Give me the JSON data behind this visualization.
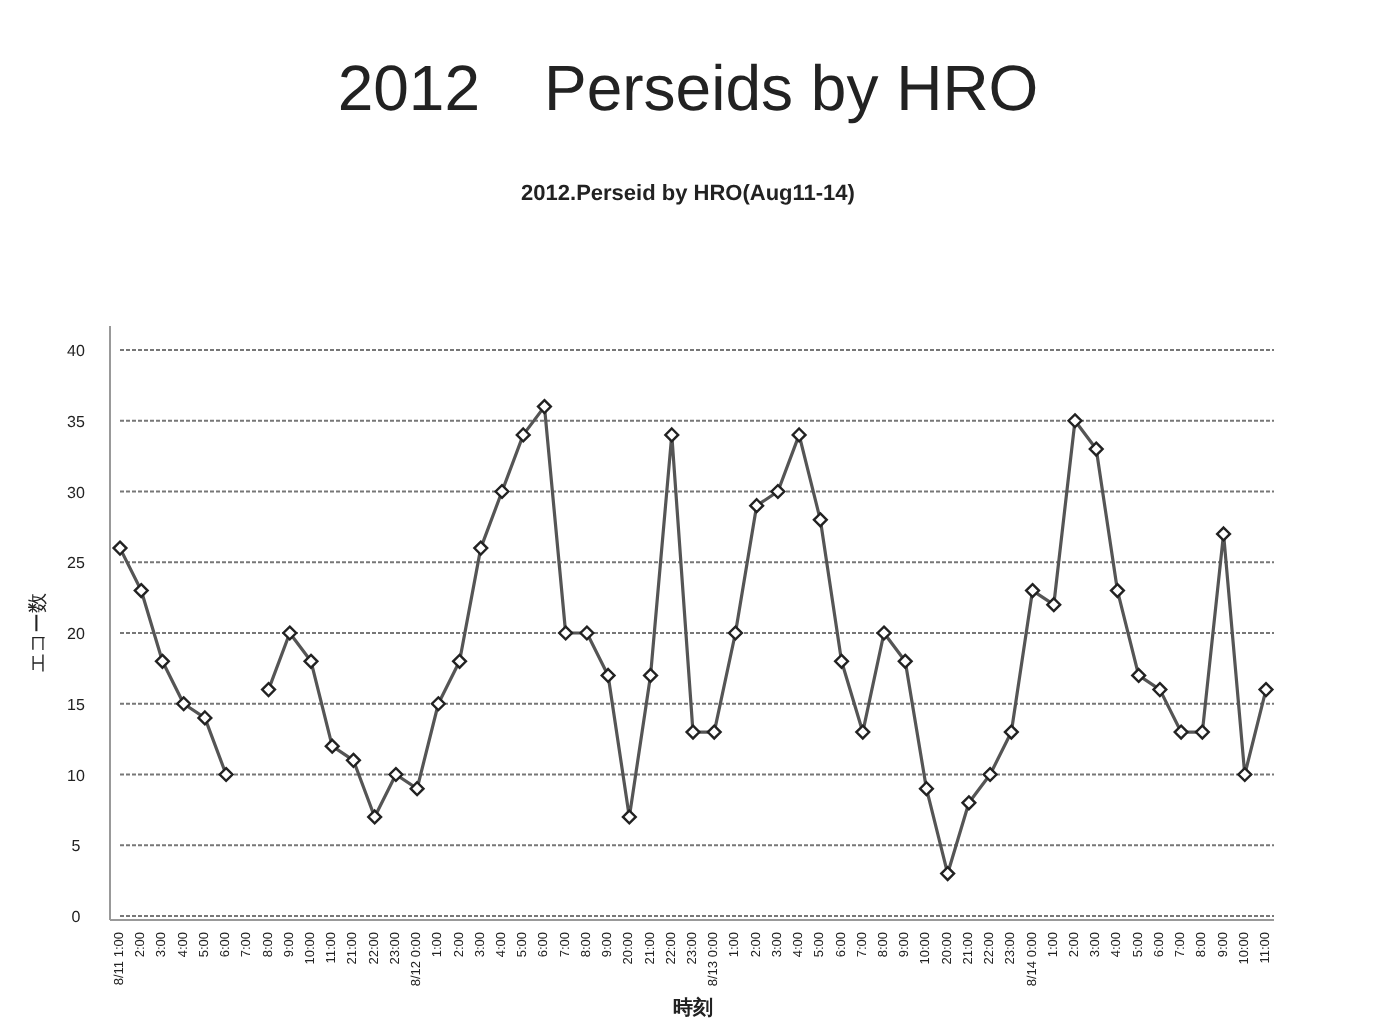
{
  "chart_data": {
    "type": "line",
    "title": "2012　Perseids by HRO",
    "subtitle": "2012.Perseid by HRO(Aug11-14)",
    "xlabel": "時刻",
    "ylabel": "エコー数",
    "categories": [
      "8/11 1:00",
      "2:00",
      "3:00",
      "4:00",
      "5:00",
      "6:00",
      "7:00",
      "8:00",
      "9:00",
      "10:00",
      "11:00",
      "21:00",
      "22:00",
      "23:00",
      "8/12 0:00",
      "1:00",
      "2:00",
      "3:00",
      "4:00",
      "5:00",
      "6:00",
      "7:00",
      "8:00",
      "9:00",
      "20:00",
      "21:00",
      "22:00",
      "23:00",
      "8/13 0:00",
      "1:00",
      "2:00",
      "3:00",
      "4:00",
      "5:00",
      "6:00",
      "7:00",
      "8:00",
      "9:00",
      "10:00",
      "20:00",
      "21:00",
      "22:00",
      "23:00",
      "8/14 0:00",
      "1:00",
      "2:00",
      "3:00",
      "4:00",
      "5:00",
      "6:00",
      "7:00",
      "8:00",
      "9:00",
      "10:00",
      "11:00"
    ],
    "series": [
      {
        "color": "#555555",
        "values": [
          26,
          23,
          18,
          15,
          14,
          10,
          null,
          16,
          20,
          18,
          12,
          11,
          7,
          10,
          9,
          15,
          18,
          26,
          30,
          34,
          36,
          20,
          20,
          17,
          7,
          17,
          34,
          13,
          13,
          20,
          29,
          30,
          34,
          28,
          18,
          13,
          20,
          18,
          9,
          3,
          8,
          10,
          13,
          23,
          22,
          35,
          33,
          23,
          17,
          16,
          13,
          13,
          27,
          10,
          16
        ]
      }
    ],
    "ylim": [
      0,
      40
    ],
    "yticks": [
      0,
      5,
      10,
      15,
      20,
      25,
      30,
      35,
      40
    ],
    "grid": "y",
    "marker": "diamond",
    "line_style": "solid"
  }
}
